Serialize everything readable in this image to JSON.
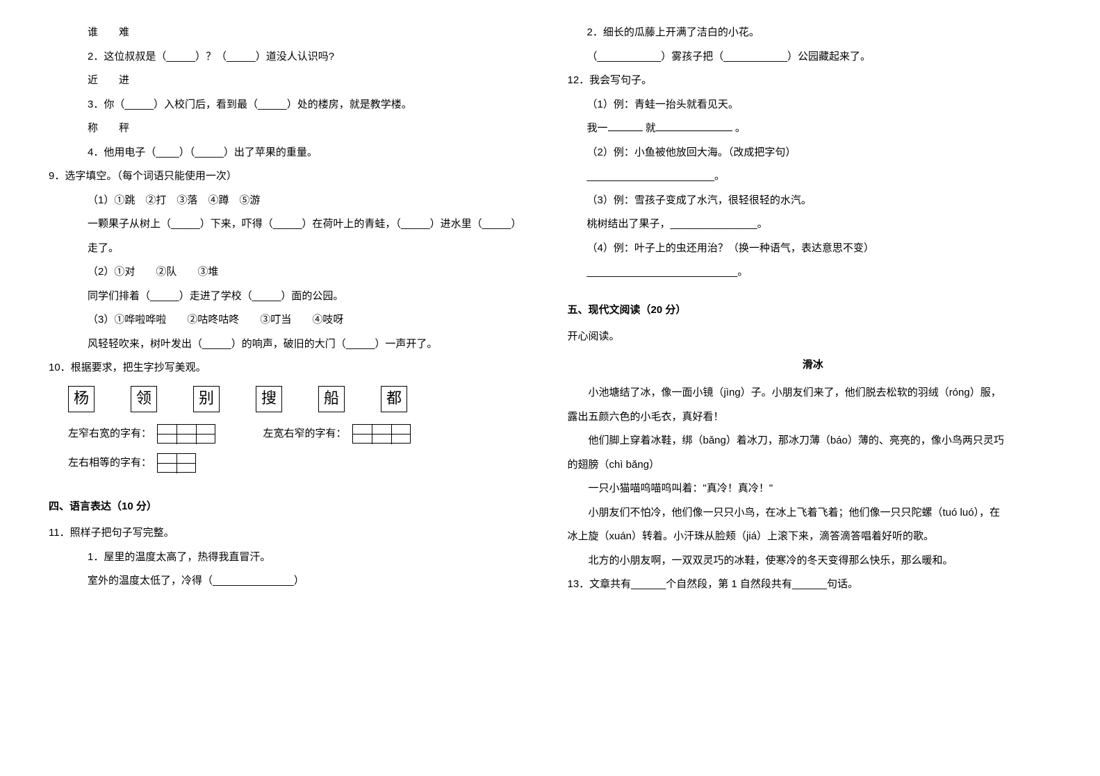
{
  "left": {
    "q8": {
      "pair1": "谁　　难",
      "line2": "2．这位叔叔是（_____）？（_____）道没人认识吗?",
      "pair2": "近　　进",
      "line3": "3．你（_____）入校门后，看到最（_____）处的楼房，就是教学楼。",
      "pair3": "称　　秤",
      "line4": "4．他用电子（____）（_____）出了苹果的重量。"
    },
    "q9": {
      "title": "9．选字填空。（每个词语只能使用一次）",
      "row1": "（1）①跳　②打　③落　④蹲　⑤游",
      "row1_blank": "一颗果子从树上（_____）下来，吓得（_____）在荷叶上的青蛙，（_____）进水里（_____）",
      "row1_end": "走了。",
      "row2": "（2）①对　　②队　　③堆",
      "row2_blank": "同学们排着（_____）走进了学校（_____）面的公园。",
      "row3": "（3）①哗啦哗啦　　②咕咚咕咚　　③叮当　　④吱呀",
      "row3_blank": "风轻轻吹来，树叶发出（_____）的响声，破旧的大门（_____）一声开了。"
    },
    "q10": {
      "title": "10．根据要求，把生字抄写美观。",
      "chars": [
        "杨",
        "领",
        "别",
        "搜",
        "船",
        "都"
      ],
      "lbl1": "左窄右宽的字有：",
      "lbl2": "左宽右窄的字有：",
      "lbl3": "左右相等的字有："
    },
    "section4": "四、语言表达（10 分）",
    "q11": {
      "title": "11．照样子把句子写完整。",
      "l1": "1．屋里的温度太高了，热得我直冒汗。",
      "l2": "室外的温度太低了，冷得（______________）"
    }
  },
  "right": {
    "q11b": {
      "l1": "2．细长的瓜藤上开满了洁白的小花。",
      "l2a": "（___________）雾孩子把（___________）公园藏起来了。"
    },
    "q12": {
      "title": "12．我会写句子。",
      "r1": "（1）例：青蛙一抬头就看见天。",
      "r1b_a": "我一",
      "r1b_b": "就",
      "r1b_c": "。",
      "r2": "（2）例：小鱼被他放回大海。（改成把字句）",
      "r2b": "______________________。",
      "r3": "（3）例：雪孩子变成了水汽，很轻很轻的水汽。",
      "r3b": "桃树结出了果子，_______________。",
      "r4": "（4）例：叶子上的虫还用治？（换一种语气，表达意思不变）",
      "r4b": "__________________________。"
    },
    "section5": "五、现代文阅读（20 分）",
    "reading": {
      "intro": "开心阅读。",
      "title": "滑冰",
      "p1": "小池塘结了冰，像一面小镜（jìng）子。小朋友们来了，他们脱去松软的羽绒（róng）服，",
      "p1b": "露出五颜六色的小毛衣，真好看！",
      "p2": "他们脚上穿着冰鞋，绑（bǎng）着冰刀，那冰刀薄（báo）薄的、亮亮的，像小鸟两只灵巧",
      "p2b": "的翅膀（chì bǎng）",
      "p3": "一只小猫喵呜喵呜叫着：\"真冷！真冷！\"",
      "p4": "小朋友们不怕冷，他们像一只只小鸟，在冰上飞着飞着；他们像一只只陀螺（tuó luó），在",
      "p4b": "冰上旋（xuán）转着。小汗珠从脸颊（jiá）上滚下来，滴答滴答唱着好听的歌。",
      "p5": "北方的小朋友啊，一双双灵巧的冰鞋，使寒冷的冬天变得那么快乐，那么暖和。"
    },
    "q13": "13．文章共有______个自然段，第 1 自然段共有______句话。"
  }
}
